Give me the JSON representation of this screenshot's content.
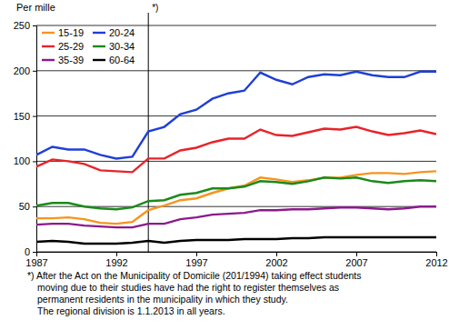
{
  "chart_data": {
    "type": "line",
    "y_label": "Per mille",
    "x": [
      1987,
      1988,
      1989,
      1990,
      1991,
      1992,
      1993,
      1994,
      1995,
      1996,
      1997,
      1998,
      1999,
      2000,
      2001,
      2002,
      2003,
      2004,
      2005,
      2006,
      2007,
      2008,
      2009,
      2010,
      2011,
      2012
    ],
    "series": [
      {
        "name": "15-19",
        "color": "#f7941d",
        "values": [
          37,
          37,
          38,
          36,
          32,
          31,
          33,
          46,
          51,
          57,
          59,
          65,
          70,
          73,
          82,
          80,
          77,
          79,
          82,
          82,
          85,
          87,
          87,
          86,
          88,
          89
        ]
      },
      {
        "name": "20-24",
        "color": "#1f3fd6",
        "values": [
          107,
          116,
          113,
          113,
          107,
          103,
          105,
          133,
          138,
          152,
          157,
          169,
          175,
          178,
          198,
          190,
          185,
          193,
          196,
          195,
          199,
          195,
          193,
          193,
          199,
          199
        ]
      },
      {
        "name": "25-29",
        "color": "#e8232a",
        "values": [
          94,
          102,
          100,
          97,
          90,
          89,
          88,
          103,
          103,
          112,
          115,
          121,
          125,
          125,
          135,
          129,
          128,
          132,
          136,
          135,
          138,
          133,
          129,
          131,
          134,
          130
        ]
      },
      {
        "name": "30-34",
        "color": "#1a8a1a",
        "values": [
          51,
          54,
          54,
          50,
          48,
          47,
          49,
          56,
          57,
          63,
          65,
          70,
          70,
          72,
          78,
          77,
          75,
          78,
          82,
          81,
          82,
          78,
          76,
          78,
          79,
          78
        ]
      },
      {
        "name": "35-39",
        "color": "#8b1a8b",
        "values": [
          30,
          31,
          31,
          29,
          28,
          27,
          27,
          31,
          31,
          36,
          38,
          41,
          42,
          43,
          46,
          46,
          47,
          47,
          48,
          49,
          49,
          48,
          47,
          48,
          50,
          50
        ]
      },
      {
        "name": "60-64",
        "color": "#000000",
        "values": [
          11,
          12,
          11,
          9,
          9,
          9,
          10,
          12,
          10,
          12,
          13,
          13,
          13,
          14,
          14,
          14,
          15,
          15,
          16,
          16,
          16,
          16,
          16,
          16,
          16,
          16
        ]
      }
    ],
    "xlim": [
      1987,
      2012
    ],
    "xticks": [
      1987,
      1992,
      1997,
      2002,
      2007,
      2012
    ],
    "ylim": [
      0,
      250
    ],
    "yticks": [
      0,
      50,
      100,
      150,
      200,
      250
    ],
    "grid": true,
    "legend": "upper left",
    "annotations": [
      {
        "x": 1994,
        "label": "*)"
      }
    ],
    "footnote": [
      "*) After the Act on the Municipality of Domicile (201/1994) taking effect students",
      "moving due to their studies have had the right to register themselves as",
      "permanent residents in the municipality in which they study.",
      "The regional division is 1.1.2013 in all years."
    ]
  }
}
